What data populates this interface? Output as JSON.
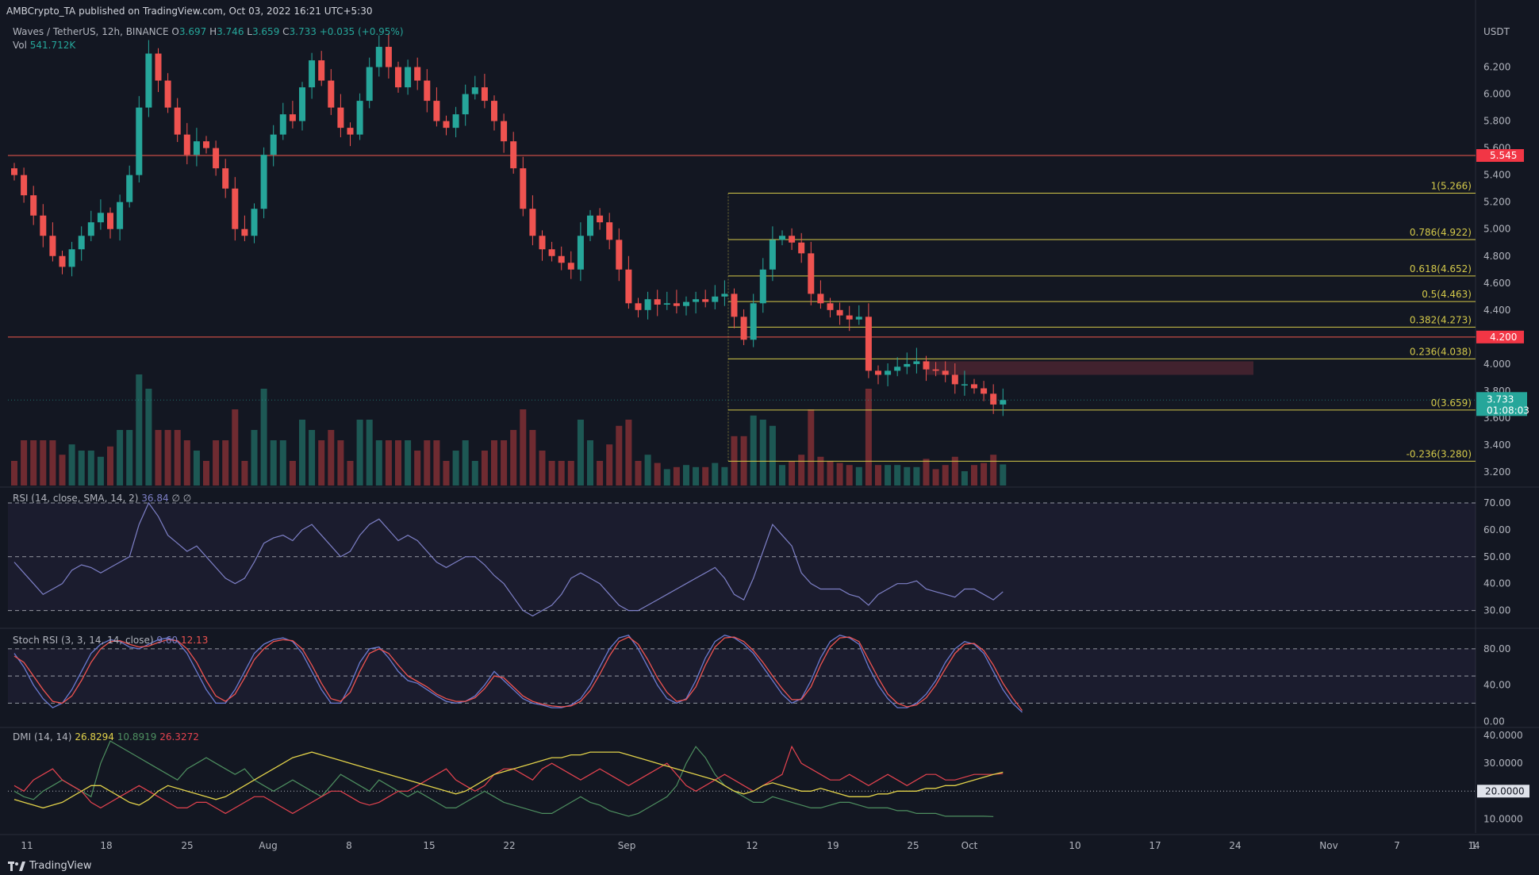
{
  "attribution": "AMBCrypto_TA published on TradingView.com, Oct 03, 2022 16:21 UTC+5:30",
  "header": {
    "symbol": "Waves / TetherUS, 12h, BINANCE",
    "o_label": "O",
    "o": "3.697",
    "h_label": "H",
    "h": "3.746",
    "l_label": "L",
    "l": "3.659",
    "c_label": "C",
    "c": "3.733",
    "change": "+0.035 (+0.95%)",
    "vol_label": "Vol",
    "vol": "541.712K"
  },
  "logo_text": "TradingView",
  "currency_label": "USDT",
  "colors": {
    "bg": "#131722",
    "up": "#26a69a",
    "down": "#ef5350",
    "fib": "#d4c94a",
    "resistance": "#f05a4d",
    "rsi": "#7e80c7",
    "stoch_k": "#6a7ad0",
    "stoch_d": "#ef5350",
    "dmi_adx": "#e2d24a",
    "dmi_plus": "#4e8f60",
    "dmi_minus": "#e5434f"
  },
  "chart_data": [
    {
      "type": "candlestick",
      "title": "Waves / TetherUS, 12h, BINANCE",
      "ylabel": "USDT",
      "ylim": [
        3.1,
        6.55
      ],
      "y_ticks": [
        "6.200",
        "6.000",
        "5.800",
        "5.600",
        "5.400",
        "5.200",
        "5.000",
        "4.800",
        "4.600",
        "4.400",
        "4.200",
        "4.000",
        "3.800",
        "3.600",
        "3.400",
        "3.200"
      ],
      "x_ticks": [
        "11",
        "18",
        "25",
        "Aug",
        "8",
        "15",
        "22",
        "Sep",
        "12",
        "19",
        "25",
        "Oct",
        "10",
        "17",
        "24",
        "Nov",
        "7",
        "14",
        "1"
      ],
      "close_series": [
        5.4,
        5.25,
        5.1,
        4.95,
        4.8,
        4.72,
        4.85,
        4.95,
        5.05,
        5.12,
        5.0,
        5.2,
        5.4,
        5.9,
        6.3,
        6.1,
        5.9,
        5.7,
        5.55,
        5.65,
        5.6,
        5.45,
        5.3,
        5.0,
        4.95,
        5.15,
        5.55,
        5.7,
        5.85,
        5.8,
        6.05,
        6.25,
        6.1,
        5.9,
        5.75,
        5.7,
        5.95,
        6.2,
        6.35,
        6.2,
        6.05,
        6.2,
        6.1,
        5.95,
        5.8,
        5.75,
        5.85,
        6.0,
        6.05,
        5.95,
        5.8,
        5.65,
        5.45,
        5.15,
        4.95,
        4.85,
        4.8,
        4.75,
        4.7,
        4.95,
        5.1,
        5.05,
        4.92,
        4.7,
        4.45,
        4.4,
        4.48,
        4.44,
        4.45,
        4.43,
        4.46,
        4.48,
        4.46,
        4.5,
        4.52,
        4.35,
        4.18,
        4.45,
        4.7,
        4.92,
        4.95,
        4.9,
        4.82,
        4.52,
        4.45,
        4.4,
        4.36,
        4.33,
        4.35,
        3.95,
        3.92,
        3.95,
        3.98,
        4.0,
        4.02,
        3.96,
        3.95,
        3.92,
        3.85,
        3.85,
        3.82,
        3.78,
        3.7,
        3.733
      ],
      "resistance_levels": [
        {
          "label": "5.545",
          "value": 5.545
        },
        {
          "label": "4.200",
          "value": 4.2
        }
      ],
      "fib_levels": [
        {
          "label": "1(5.266)",
          "value": 5.266
        },
        {
          "label": "0.786(4.922)",
          "value": 4.922
        },
        {
          "label": "0.618(4.652)",
          "value": 4.652
        },
        {
          "label": "0.5(4.463)",
          "value": 4.463
        },
        {
          "label": "0.382(4.273)",
          "value": 4.273
        },
        {
          "label": "0.236(4.038)",
          "value": 4.038
        },
        {
          "label": "0(3.659)",
          "value": 3.659
        },
        {
          "label": "-0.236(3.280)",
          "value": 3.28
        }
      ],
      "current_price": {
        "value": 3.733,
        "label": "3.733",
        "countdown": "01:08:03"
      },
      "supply_zone": {
        "low": 3.92,
        "high": 4.02
      }
    },
    {
      "type": "line",
      "title": "RSI (14, close, SMA, 14, 2)",
      "legend_values": [
        "36.84",
        "∅",
        "∅"
      ],
      "ylim": [
        24,
        75
      ],
      "y_ticks": [
        "70.00",
        "60.00",
        "50.00",
        "40.00",
        "30.00"
      ],
      "bands": [
        70,
        50,
        30
      ],
      "series": [
        {
          "name": "RSI",
          "values": [
            48,
            44,
            40,
            36,
            38,
            40,
            45,
            47,
            46,
            44,
            46,
            48,
            50,
            62,
            70,
            65,
            58,
            55,
            52,
            54,
            50,
            46,
            42,
            40,
            42,
            48,
            55,
            57,
            58,
            56,
            60,
            62,
            58,
            54,
            50,
            52,
            58,
            62,
            64,
            60,
            56,
            58,
            56,
            52,
            48,
            46,
            48,
            50,
            50,
            47,
            43,
            40,
            35,
            30,
            28,
            30,
            32,
            36,
            42,
            44,
            42,
            40,
            36,
            32,
            30,
            30,
            32,
            34,
            36,
            38,
            40,
            42,
            44,
            46,
            42,
            36,
            34,
            42,
            52,
            62,
            58,
            54,
            44,
            40,
            38,
            38,
            38,
            36,
            35,
            32,
            36,
            38,
            40,
            40,
            41,
            38,
            37,
            36,
            35,
            38,
            38,
            36,
            34,
            37
          ]
        }
      ]
    },
    {
      "type": "line",
      "title": "Stoch RSI (3, 3, 14, 14, close)",
      "legend_values": [
        "9.60",
        "12.13"
      ],
      "ylim": [
        -5,
        100
      ],
      "y_ticks": [
        "80.00",
        "40.00",
        "0.00"
      ],
      "bands": [
        80,
        50,
        20
      ],
      "series": [
        {
          "name": "K",
          "values": [
            75,
            60,
            40,
            25,
            15,
            20,
            35,
            55,
            75,
            85,
            90,
            88,
            82,
            80,
            85,
            90,
            92,
            88,
            75,
            55,
            35,
            20,
            20,
            35,
            55,
            75,
            85,
            90,
            92,
            88,
            75,
            55,
            35,
            20,
            20,
            40,
            65,
            80,
            82,
            70,
            55,
            45,
            42,
            35,
            28,
            22,
            20,
            22,
            28,
            40,
            55,
            45,
            35,
            25,
            20,
            18,
            15,
            15,
            18,
            25,
            40,
            60,
            80,
            92,
            95,
            80,
            60,
            40,
            25,
            20,
            25,
            45,
            70,
            88,
            95,
            92,
            85,
            75,
            60,
            45,
            30,
            20,
            25,
            45,
            70,
            88,
            95,
            92,
            85,
            60,
            40,
            25,
            15,
            15,
            20,
            30,
            45,
            65,
            80,
            88,
            85,
            75,
            55,
            35,
            20,
            10
          ]
        },
        {
          "name": "D",
          "values": [
            72,
            65,
            50,
            35,
            22,
            20,
            28,
            45,
            65,
            80,
            88,
            89,
            85,
            82,
            83,
            87,
            90,
            89,
            80,
            65,
            45,
            28,
            22,
            30,
            48,
            68,
            80,
            88,
            90,
            89,
            80,
            62,
            42,
            25,
            22,
            32,
            55,
            75,
            80,
            75,
            62,
            50,
            44,
            38,
            30,
            25,
            22,
            22,
            26,
            36,
            50,
            48,
            38,
            28,
            22,
            19,
            17,
            16,
            17,
            22,
            34,
            52,
            72,
            88,
            93,
            85,
            68,
            48,
            32,
            22,
            24,
            38,
            62,
            82,
            92,
            93,
            88,
            78,
            65,
            50,
            36,
            24,
            24,
            38,
            62,
            82,
            92,
            93,
            88,
            68,
            48,
            30,
            20,
            16,
            18,
            26,
            40,
            58,
            75,
            85,
            86,
            78,
            62,
            42,
            26,
            12
          ]
        }
      ]
    },
    {
      "type": "line",
      "title": "DMI (14, 14)",
      "legend_values": [
        "26.8294",
        "10.8919",
        "26.3272"
      ],
      "ylim": [
        5,
        42
      ],
      "y_ticks": [
        "40.0000",
        "30.0000",
        "20.0000",
        "10.0000"
      ],
      "baseline": {
        "label": "20.0000",
        "value": 20
      },
      "series": [
        {
          "name": "ADX",
          "values": [
            17,
            16,
            15,
            14,
            15,
            16,
            18,
            20,
            22,
            22,
            20,
            18,
            16,
            15,
            17,
            20,
            22,
            21,
            20,
            19,
            18,
            17,
            18,
            20,
            22,
            24,
            26,
            28,
            30,
            32,
            33,
            34,
            33,
            32,
            31,
            30,
            29,
            28,
            27,
            26,
            25,
            24,
            23,
            22,
            21,
            20,
            19,
            20,
            22,
            24,
            26,
            27,
            28,
            29,
            30,
            31,
            32,
            32,
            33,
            33,
            34,
            34,
            34,
            34,
            33,
            32,
            31,
            30,
            29,
            28,
            27,
            26,
            25,
            24,
            22,
            20,
            19,
            20,
            22,
            23,
            22,
            21,
            20,
            20,
            21,
            20,
            19,
            18,
            18,
            18,
            19,
            19,
            20,
            20,
            20,
            21,
            21,
            22,
            22,
            23,
            24,
            25,
            26,
            26.8
          ]
        },
        {
          "name": "+DI",
          "values": [
            20,
            18,
            17,
            20,
            22,
            24,
            22,
            20,
            18,
            30,
            38,
            36,
            34,
            32,
            30,
            28,
            26,
            24,
            28,
            30,
            32,
            30,
            28,
            26,
            28,
            24,
            22,
            20,
            22,
            24,
            22,
            20,
            18,
            22,
            26,
            24,
            22,
            20,
            24,
            22,
            20,
            18,
            20,
            18,
            16,
            14,
            14,
            16,
            18,
            20,
            18,
            16,
            15,
            14,
            13,
            12,
            12,
            14,
            16,
            18,
            16,
            15,
            13,
            12,
            11,
            12,
            14,
            16,
            18,
            22,
            30,
            36,
            32,
            26,
            22,
            20,
            18,
            16,
            16,
            18,
            17,
            16,
            15,
            14,
            14,
            15,
            16,
            16,
            15,
            14,
            14,
            14,
            13,
            13,
            12,
            12,
            12,
            11,
            11,
            11,
            11,
            11,
            10.9
          ]
        },
        {
          "name": "-DI",
          "values": [
            22,
            20,
            24,
            26,
            28,
            24,
            22,
            20,
            16,
            14,
            16,
            18,
            20,
            22,
            20,
            18,
            16,
            14,
            14,
            16,
            16,
            14,
            12,
            14,
            16,
            18,
            18,
            16,
            14,
            12,
            14,
            16,
            18,
            20,
            20,
            18,
            16,
            15,
            16,
            18,
            20,
            20,
            22,
            24,
            26,
            28,
            24,
            22,
            20,
            22,
            26,
            28,
            28,
            26,
            24,
            28,
            30,
            28,
            26,
            24,
            26,
            28,
            26,
            24,
            22,
            24,
            26,
            28,
            30,
            26,
            22,
            20,
            22,
            24,
            26,
            24,
            22,
            20,
            22,
            24,
            26,
            36,
            30,
            28,
            26,
            24,
            24,
            26,
            24,
            22,
            24,
            26,
            24,
            22,
            24,
            26,
            26,
            24,
            24,
            25,
            26,
            26,
            26,
            26.3
          ]
        }
      ]
    }
  ]
}
